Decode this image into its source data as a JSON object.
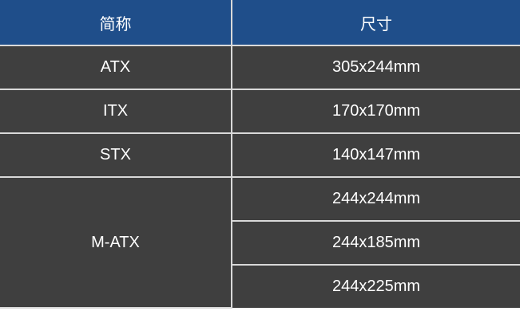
{
  "table": {
    "headers": [
      "简称",
      "尺寸"
    ],
    "rows": [
      {
        "name": "ATX",
        "sizes": [
          "305x244mm"
        ]
      },
      {
        "name": "ITX",
        "sizes": [
          "170x170mm"
        ]
      },
      {
        "name": "STX",
        "sizes": [
          "140x147mm"
        ]
      },
      {
        "name": "M-ATX",
        "sizes": [
          "244x244mm",
          "244x185mm",
          "244x225mm"
        ]
      }
    ]
  },
  "colors": {
    "header_bg": "#1f4e8a",
    "body_bg": "#3f3f3f",
    "border": "#d9d9d9",
    "text": "#ffffff"
  }
}
